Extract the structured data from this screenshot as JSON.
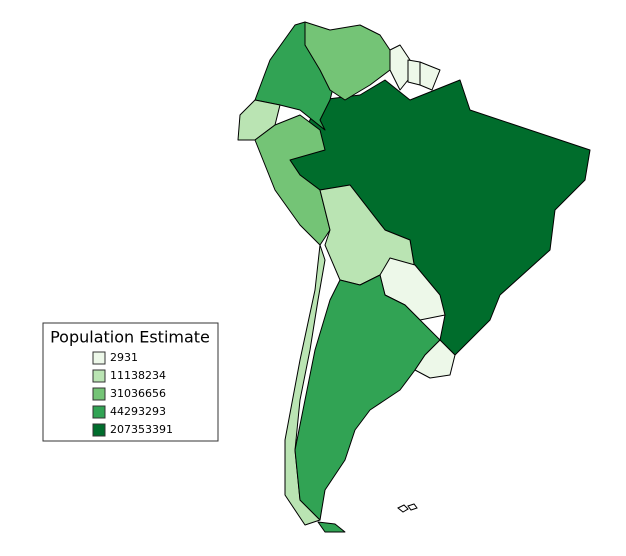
{
  "legend": {
    "title": "Population Estimate",
    "items": [
      {
        "label": 2931,
        "color": "#edf8e9"
      },
      {
        "label": 11138234,
        "color": "#bae4b3"
      },
      {
        "label": 31036656,
        "color": "#74c476"
      },
      {
        "label": 44293293,
        "color": "#31a354"
      },
      {
        "label": 207353391,
        "color": "#006d2c"
      }
    ]
  }
}
